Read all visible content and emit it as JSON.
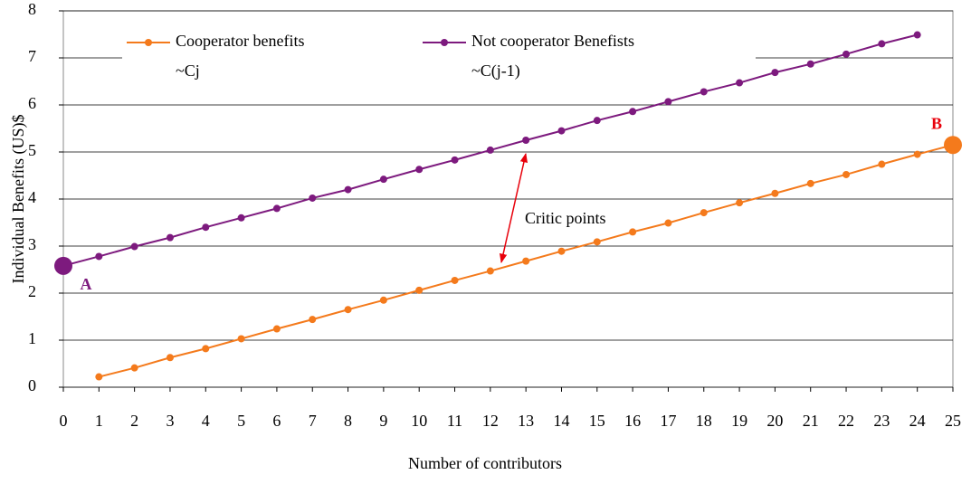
{
  "chart_data": {
    "type": "line",
    "x_label": "Number of contributors",
    "y_label": "Individual Benefits (US)$",
    "x": [
      0,
      1,
      2,
      3,
      4,
      5,
      6,
      7,
      8,
      9,
      10,
      11,
      12,
      13,
      14,
      15,
      16,
      17,
      18,
      19,
      20,
      21,
      22,
      23,
      24,
      25
    ],
    "series": [
      {
        "name": "Cooperator benefits",
        "formula": "~Cj",
        "color": "#f47a1c",
        "values": [
          null,
          0.22,
          0.41,
          0.63,
          0.82,
          1.03,
          1.24,
          1.44,
          1.65,
          1.85,
          2.06,
          2.27,
          2.47,
          2.68,
          2.89,
          3.09,
          3.3,
          3.49,
          3.71,
          3.92,
          4.12,
          4.33,
          4.52,
          4.74,
          4.95,
          5.15
        ],
        "point_labels": [
          null,
          null,
          null,
          null,
          null,
          null,
          null,
          null,
          null,
          null,
          null,
          null,
          null,
          null,
          null,
          null,
          null,
          null,
          null,
          null,
          null,
          null,
          null,
          null,
          null,
          "B"
        ],
        "label_color": "#e8000b"
      },
      {
        "name": "Not cooperator Benefists",
        "formula": "~C(j-1)",
        "color": "#7d1a7e",
        "values": [
          2.58,
          2.78,
          2.99,
          3.18,
          3.4,
          3.6,
          3.8,
          4.02,
          4.2,
          4.42,
          4.63,
          4.83,
          5.04,
          5.25,
          5.45,
          5.67,
          5.86,
          6.07,
          6.28,
          6.47,
          6.69,
          6.87,
          7.08,
          7.3,
          7.49,
          null
        ],
        "point_labels": [
          "A",
          null,
          null,
          null,
          null,
          null,
          null,
          null,
          null,
          null,
          null,
          null,
          null,
          null,
          null,
          null,
          null,
          null,
          null,
          null,
          null,
          null,
          null,
          null,
          null,
          null
        ],
        "label_color": "#7d1a7e"
      }
    ],
    "annotation": "Critic points",
    "annotation_color": "#e8000b",
    "xlim": [
      0,
      25
    ],
    "xticks": [
      0,
      1,
      2,
      3,
      4,
      5,
      6,
      7,
      8,
      9,
      10,
      11,
      12,
      13,
      14,
      15,
      16,
      17,
      18,
      19,
      20,
      21,
      22,
      23,
      24,
      25
    ],
    "ylim": [
      0,
      8
    ],
    "yticks": [
      0,
      1,
      2,
      3,
      4,
      5,
      6,
      7,
      8
    ],
    "grid": true
  }
}
